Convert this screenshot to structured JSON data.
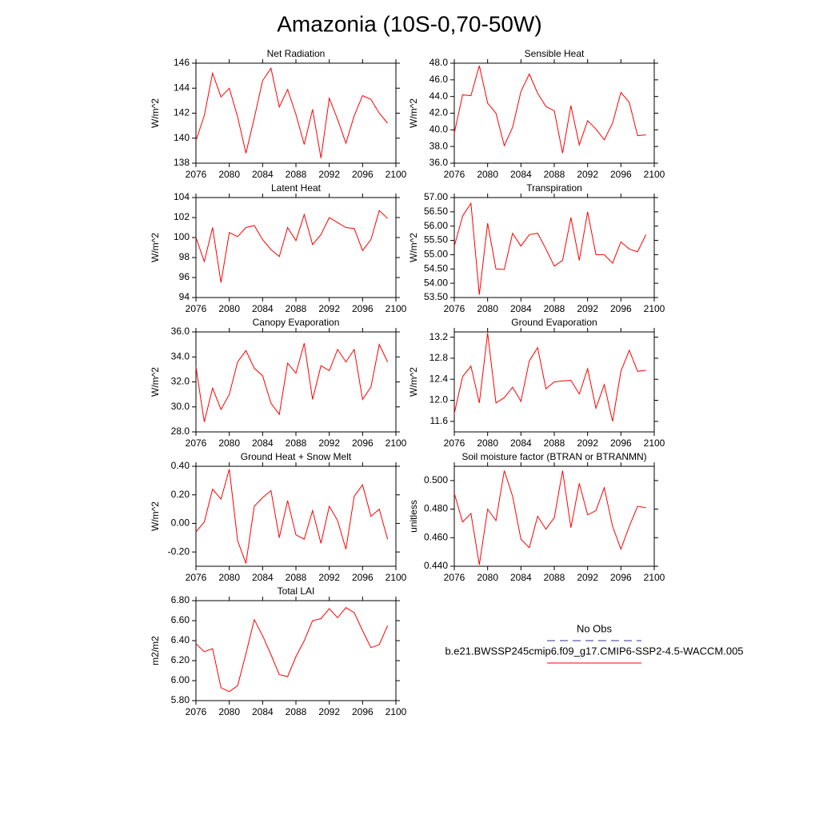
{
  "title": "Amazonia (10S-0,70-50W)",
  "legend": [
    {
      "name": "No Obs",
      "color": "#3030a0",
      "dashed": true
    },
    {
      "name": "b.e21.BWSSP245cmip6.f09_g17.CMIP6-SSP2-4.5-WACCM.005",
      "color": "#ff0000",
      "dashed": false
    }
  ],
  "chart_data": [
    {
      "type": "line",
      "title": "Net Radiation",
      "ylabel": "W/m^2",
      "color": "#ff0000",
      "x": [
        2076,
        2077,
        2078,
        2079,
        2080,
        2081,
        2082,
        2083,
        2084,
        2085,
        2086,
        2087,
        2088,
        2089,
        2090,
        2091,
        2092,
        2093,
        2094,
        2095,
        2096,
        2097,
        2098,
        2099
      ],
      "values": [
        139.8,
        141.8,
        145.2,
        143.3,
        144.0,
        141.7,
        138.8,
        141.6,
        144.6,
        145.6,
        142.5,
        143.9,
        141.9,
        139.5,
        142.3,
        138.4,
        143.2,
        141.5,
        139.6,
        141.8,
        143.4,
        143.1,
        142.0,
        141.2
      ],
      "xlim": [
        2076,
        2100
      ],
      "xticks": [
        2076,
        2080,
        2084,
        2088,
        2092,
        2096,
        2100
      ],
      "ylim": [
        138,
        146
      ],
      "yticks": [
        138,
        140,
        142,
        144,
        146
      ]
    },
    {
      "type": "line",
      "title": "Sensible Heat",
      "ylabel": "W/m^2",
      "color": "#ff0000",
      "x": [
        2076,
        2077,
        2078,
        2079,
        2080,
        2081,
        2082,
        2083,
        2084,
        2085,
        2086,
        2087,
        2088,
        2089,
        2090,
        2091,
        2092,
        2093,
        2094,
        2095,
        2096,
        2097,
        2098,
        2099
      ],
      "values": [
        39.6,
        44.2,
        44.1,
        47.7,
        43.2,
        42.0,
        38.1,
        40.3,
        44.6,
        46.7,
        44.4,
        42.8,
        42.3,
        37.2,
        42.9,
        38.2,
        41.1,
        40.1,
        38.8,
        40.8,
        44.5,
        43.3,
        39.3,
        39.4
      ],
      "xlim": [
        2076,
        2100
      ],
      "xticks": [
        2076,
        2080,
        2084,
        2088,
        2092,
        2096,
        2100
      ],
      "ylim": [
        36,
        48
      ],
      "yticks": [
        {
          "value": 36,
          "label": "36.0"
        },
        {
          "value": 38,
          "label": "38.0"
        },
        {
          "value": 40,
          "label": "40.0"
        },
        {
          "value": 42,
          "label": "42.0"
        },
        {
          "value": 44,
          "label": "44.0"
        },
        {
          "value": 46,
          "label": "46.0"
        },
        {
          "value": 48,
          "label": "48.0"
        }
      ]
    },
    {
      "type": "line",
      "title": "Latent Heat",
      "ylabel": "W/m^2",
      "color": "#ff0000",
      "x": [
        2076,
        2077,
        2078,
        2079,
        2080,
        2081,
        2082,
        2083,
        2084,
        2085,
        2086,
        2087,
        2088,
        2089,
        2090,
        2091,
        2092,
        2093,
        2094,
        2095,
        2096,
        2097,
        2098,
        2099
      ],
      "values": [
        100.0,
        97.6,
        101.0,
        95.5,
        100.5,
        100.1,
        101.0,
        101.2,
        99.8,
        98.8,
        98.1,
        101.0,
        99.7,
        102.3,
        99.3,
        100.3,
        102.0,
        101.5,
        101.0,
        100.9,
        98.7,
        99.8,
        102.7,
        101.9
      ],
      "xlim": [
        2076,
        2100
      ],
      "xticks": [
        2076,
        2080,
        2084,
        2088,
        2092,
        2096,
        2100
      ],
      "ylim": [
        94,
        104
      ],
      "yticks": [
        94,
        96,
        98,
        100,
        102,
        104
      ]
    },
    {
      "type": "line",
      "title": "Transpiration",
      "ylabel": "W/m^2",
      "color": "#ff0000",
      "x": [
        2076,
        2077,
        2078,
        2079,
        2080,
        2081,
        2082,
        2083,
        2084,
        2085,
        2086,
        2087,
        2088,
        2089,
        2090,
        2091,
        2092,
        2093,
        2094,
        2095,
        2096,
        2097,
        2098,
        2099
      ],
      "values": [
        55.3,
        56.35,
        56.8,
        53.6,
        56.1,
        54.5,
        54.48,
        55.75,
        55.3,
        55.7,
        55.75,
        55.2,
        54.6,
        54.8,
        56.3,
        54.8,
        56.5,
        55.0,
        55.0,
        54.7,
        55.45,
        55.2,
        55.1,
        55.7
      ],
      "xlim": [
        2076,
        2100
      ],
      "xticks": [
        2076,
        2080,
        2084,
        2088,
        2092,
        2096,
        2100
      ],
      "ylim": [
        53.5,
        57
      ],
      "yticks": [
        {
          "value": 53.5,
          "label": "53.50"
        },
        {
          "value": 54,
          "label": "54.00"
        },
        {
          "value": 54.5,
          "label": "54.50"
        },
        {
          "value": 55,
          "label": "55.00"
        },
        {
          "value": 55.5,
          "label": "55.50"
        },
        {
          "value": 56,
          "label": "56.00"
        },
        {
          "value": 56.5,
          "label": "56.50"
        },
        {
          "value": 57,
          "label": "57.00"
        }
      ]
    },
    {
      "type": "line",
      "title": "Canopy Evaporation",
      "ylabel": "W/m^2",
      "color": "#ff0000",
      "x": [
        2076,
        2077,
        2078,
        2079,
        2080,
        2081,
        2082,
        2083,
        2084,
        2085,
        2086,
        2087,
        2088,
        2089,
        2090,
        2091,
        2092,
        2093,
        2094,
        2095,
        2096,
        2097,
        2098,
        2099
      ],
      "values": [
        33.2,
        28.8,
        31.5,
        29.8,
        31.0,
        33.6,
        34.5,
        33.1,
        32.5,
        30.3,
        29.4,
        33.5,
        32.7,
        35.1,
        30.6,
        33.3,
        32.9,
        34.6,
        33.6,
        34.6,
        30.6,
        31.6,
        35.0,
        33.6
      ],
      "xlim": [
        2076,
        2100
      ],
      "xticks": [
        2076,
        2080,
        2084,
        2088,
        2092,
        2096,
        2100
      ],
      "ylim": [
        28,
        36
      ],
      "yticks": [
        {
          "value": 28,
          "label": "28.0"
        },
        {
          "value": 30,
          "label": "30.0"
        },
        {
          "value": 32,
          "label": "32.0"
        },
        {
          "value": 34,
          "label": "34.0"
        },
        {
          "value": 36,
          "label": "36.0"
        }
      ]
    },
    {
      "type": "line",
      "title": "Ground Evaporation",
      "ylabel": "W/m^2",
      "color": "#ff0000",
      "x": [
        2076,
        2077,
        2078,
        2079,
        2080,
        2081,
        2082,
        2083,
        2084,
        2085,
        2086,
        2087,
        2088,
        2089,
        2090,
        2091,
        2092,
        2093,
        2094,
        2095,
        2096,
        2097,
        2098,
        2099
      ],
      "values": [
        11.75,
        12.45,
        12.65,
        11.95,
        13.28,
        11.95,
        12.05,
        12.25,
        11.98,
        12.75,
        13.0,
        12.22,
        12.35,
        12.37,
        12.38,
        12.12,
        12.6,
        11.85,
        12.3,
        11.6,
        12.55,
        12.95,
        12.55,
        12.57
      ],
      "xlim": [
        2076,
        2100
      ],
      "xticks": [
        2076,
        2080,
        2084,
        2088,
        2092,
        2096,
        2100
      ],
      "ylim": [
        11.4,
        13.3
      ],
      "yticks": [
        11.6,
        {
          "value": 12,
          "label": "12.0"
        },
        12.4,
        12.8,
        13.2
      ]
    },
    {
      "type": "line",
      "title": "Ground Heat + Snow Melt",
      "ylabel": "W/m^2",
      "color": "#ff0000",
      "x": [
        2076,
        2077,
        2078,
        2079,
        2080,
        2081,
        2082,
        2083,
        2084,
        2085,
        2086,
        2087,
        2088,
        2089,
        2090,
        2091,
        2092,
        2093,
        2094,
        2095,
        2096,
        2097,
        2098,
        2099
      ],
      "values": [
        -0.06,
        0.01,
        0.24,
        0.17,
        0.38,
        -0.12,
        -0.28,
        0.12,
        0.18,
        0.23,
        -0.1,
        0.16,
        -0.08,
        -0.11,
        0.09,
        -0.14,
        0.12,
        0.02,
        -0.18,
        0.19,
        0.27,
        0.05,
        0.1,
        -0.11
      ],
      "xlim": [
        2076,
        2100
      ],
      "xticks": [
        2076,
        2080,
        2084,
        2088,
        2092,
        2096,
        2100
      ],
      "ylim": [
        -0.3,
        0.4
      ],
      "yticks": [
        {
          "value": -0.2,
          "label": "-0.20"
        },
        {
          "value": 0,
          "label": "0.00"
        },
        {
          "value": 0.2,
          "label": "0.20"
        },
        {
          "value": 0.4,
          "label": "0.40"
        }
      ]
    },
    {
      "type": "line",
      "title": "Soil moisture factor (BTRAN or BTRANMN)",
      "ylabel": "unitless",
      "color": "#ff0000",
      "x": [
        2076,
        2077,
        2078,
        2079,
        2080,
        2081,
        2082,
        2083,
        2084,
        2085,
        2086,
        2087,
        2088,
        2089,
        2090,
        2091,
        2092,
        2093,
        2094,
        2095,
        2096,
        2097,
        2098,
        2099
      ],
      "values": [
        0.491,
        0.471,
        0.477,
        0.441,
        0.48,
        0.472,
        0.507,
        0.489,
        0.459,
        0.453,
        0.475,
        0.466,
        0.474,
        0.507,
        0.467,
        0.498,
        0.476,
        0.479,
        0.495,
        0.468,
        0.452,
        0.468,
        0.482,
        0.481
      ],
      "xlim": [
        2076,
        2100
      ],
      "xticks": [
        2076,
        2080,
        2084,
        2088,
        2092,
        2096,
        2100
      ],
      "ylim": [
        0.44,
        0.51
      ],
      "yticks": [
        {
          "value": 0.44,
          "label": "0.440"
        },
        {
          "value": 0.46,
          "label": "0.460"
        },
        {
          "value": 0.48,
          "label": "0.480"
        },
        {
          "value": 0.5,
          "label": "0.500"
        }
      ]
    },
    {
      "type": "line",
      "title": "Total LAI",
      "ylabel": "m2/m2",
      "color": "#ff0000",
      "x": [
        2076,
        2077,
        2078,
        2079,
        2080,
        2081,
        2082,
        2083,
        2084,
        2085,
        2086,
        2087,
        2088,
        2089,
        2090,
        2091,
        2092,
        2093,
        2094,
        2095,
        2096,
        2097,
        2098,
        2099
      ],
      "values": [
        6.37,
        6.29,
        6.32,
        5.93,
        5.89,
        5.95,
        6.27,
        6.61,
        6.45,
        6.26,
        6.06,
        6.04,
        6.24,
        6.4,
        6.6,
        6.62,
        6.72,
        6.63,
        6.73,
        6.68,
        6.5,
        6.33,
        6.36,
        6.55
      ],
      "xlim": [
        2076,
        2100
      ],
      "xticks": [
        2076,
        2080,
        2084,
        2088,
        2092,
        2096,
        2100
      ],
      "ylim": [
        5.8,
        6.8
      ],
      "yticks": [
        {
          "value": 5.8,
          "label": "5.80"
        },
        {
          "value": 6,
          "label": "6.00"
        },
        {
          "value": 6.2,
          "label": "6.20"
        },
        {
          "value": 6.4,
          "label": "6.40"
        },
        {
          "value": 6.6,
          "label": "6.60"
        },
        {
          "value": 6.8,
          "label": "6.80"
        }
      ]
    }
  ]
}
